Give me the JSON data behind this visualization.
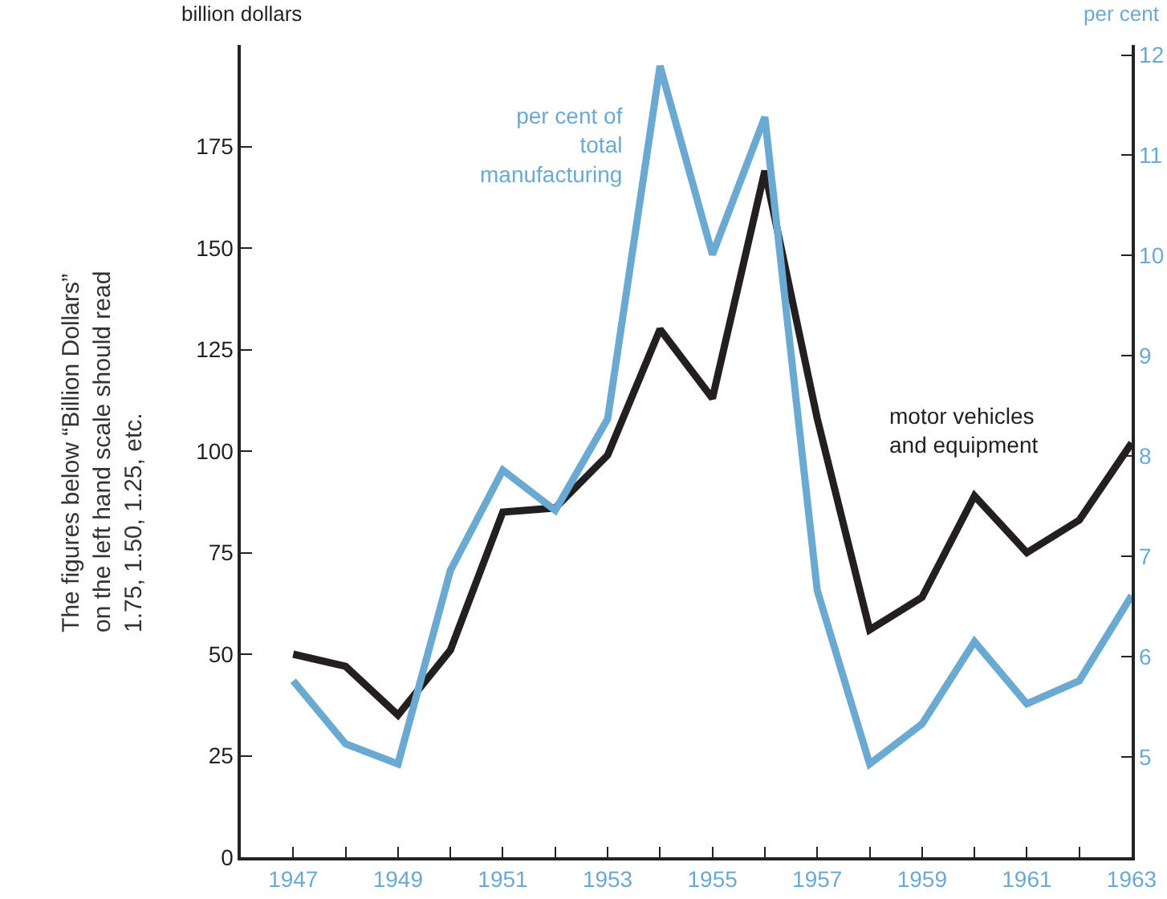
{
  "chart_data": {
    "type": "line",
    "ylabel": "billion dollars",
    "y2label": "per cent",
    "x": [
      1947,
      1948,
      1949,
      1950,
      1951,
      1952,
      1953,
      1954,
      1955,
      1956,
      1957,
      1958,
      1959,
      1960,
      1961,
      1962,
      1963
    ],
    "series": [
      {
        "name": "motor vehicles and equipment",
        "color": "#231f20",
        "values": [
          50,
          47,
          35,
          51,
          85,
          86,
          99,
          130,
          113,
          169,
          108,
          56,
          64,
          89,
          75,
          83,
          102
        ]
      },
      {
        "name": "per cent of total manufacturing",
        "color": "#6aaad2",
        "axis": "y2",
        "values": [
          5.76,
          5.13,
          4.93,
          6.86,
          7.86,
          7.46,
          8.37,
          11.89,
          10.01,
          11.38,
          6.66,
          4.93,
          5.33,
          6.15,
          5.53,
          5.76,
          6.61
        ]
      }
    ],
    "xlim": [
      1946,
      1963
    ],
    "xticks": [
      1947,
      {
        "value": 1948,
        "label": null
      },
      1949,
      {
        "value": 1950,
        "label": null
      },
      1951,
      {
        "value": 1952,
        "label": null
      },
      1953,
      {
        "value": 1954,
        "label": null
      },
      1955,
      {
        "value": 1956,
        "label": null
      },
      1957,
      {
        "value": 1958,
        "label": null
      },
      1959,
      {
        "value": 1960,
        "label": null
      },
      1961,
      {
        "value": 1962,
        "label": null
      },
      1963
    ],
    "ylim": [
      0,
      200
    ],
    "yticks": [
      0,
      25,
      50,
      75,
      100,
      125,
      150,
      175
    ],
    "y2lim": [
      4,
      12.1
    ],
    "y2ticks": [
      5,
      6,
      7,
      8,
      9,
      10,
      11,
      12
    ],
    "grid": false,
    "legend": false,
    "marker": "none",
    "line_style": "solid",
    "annotations": [
      "The figures below “Billion Dollars”\non the left hand scale should read\n1.75, 1.50, 1.25, etc."
    ]
  }
}
